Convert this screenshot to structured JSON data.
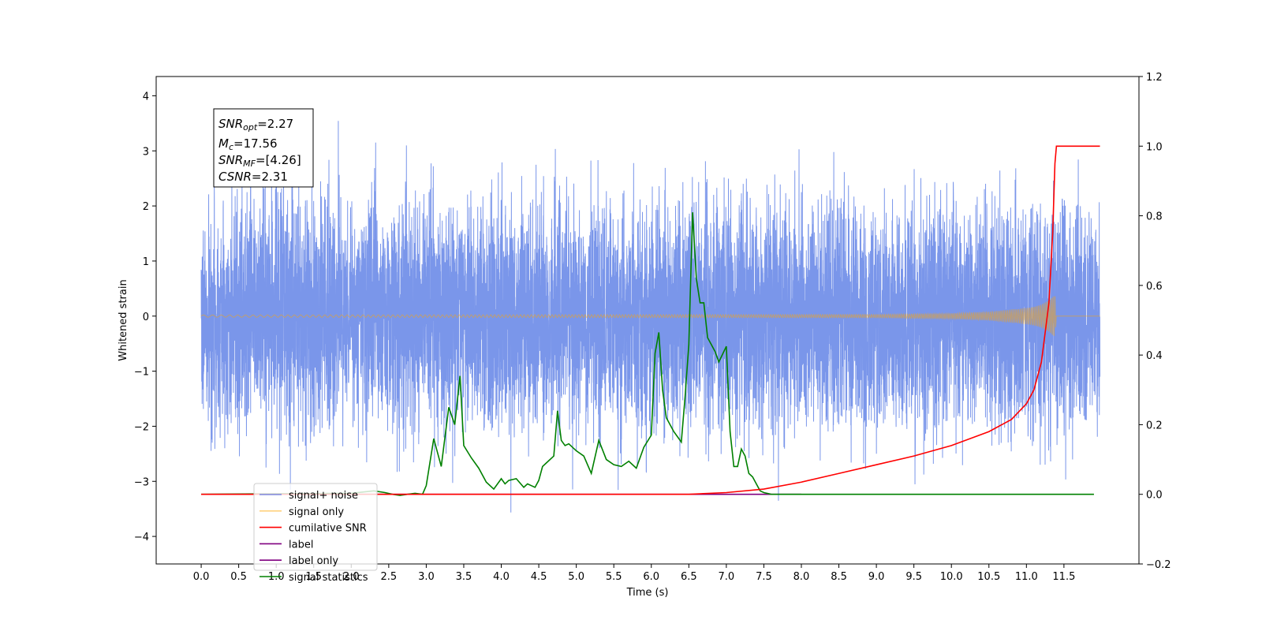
{
  "chart_data": {
    "type": "line",
    "xlabel": "Time (s)",
    "ylabel": "Whitened strain",
    "xlim": [
      -0.6,
      12.5
    ],
    "ylim": [
      -4.5,
      4.35
    ],
    "y2lim": [
      -0.2,
      1.2
    ],
    "grid": false,
    "legend_position": "lower-left",
    "x_ticks": [
      "0.0",
      "0.5",
      "1.0",
      "1.5",
      "2.0",
      "2.5",
      "3.0",
      "3.5",
      "4.0",
      "4.5",
      "5.0",
      "5.5",
      "6.0",
      "6.5",
      "7.0",
      "7.5",
      "8.0",
      "8.5",
      "9.0",
      "9.5",
      "10.0",
      "10.5",
      "11.0",
      "11.5"
    ],
    "y_ticks": [
      "4",
      "3",
      "2",
      "1",
      "0",
      "−1",
      "−2",
      "−3",
      "−4"
    ],
    "y2_ticks": [
      "1.2",
      "1.0",
      "0.8",
      "0.6",
      "0.4",
      "0.2",
      "0.0",
      "−0.2"
    ],
    "annotation": [
      {
        "var": "SNR",
        "sub": "opt",
        "value": "=2.27"
      },
      {
        "var": "M",
        "sub": "c",
        "value": "=17.56"
      },
      {
        "var": "SNR",
        "sub": "MF",
        "value": "=[4.26]"
      },
      {
        "var": "CSNR",
        "sub": "",
        "value": "=2.31"
      }
    ],
    "series": [
      {
        "name": "signal+ noise",
        "color": "#4169e1",
        "opacity": 0.7,
        "axis": "left",
        "x_range": [
          0.0,
          11.98
        ],
        "noise_std": 1.0
      },
      {
        "name": "signal only",
        "color": "#ffa500",
        "opacity": 0.5,
        "axis": "left",
        "envelope": {
          "x": [
            0.0,
            9.0,
            10.0,
            10.5,
            11.0,
            11.2,
            11.3,
            11.35,
            11.38,
            11.4,
            11.98
          ],
          "y": [
            0.02,
            0.03,
            0.05,
            0.08,
            0.15,
            0.22,
            0.3,
            0.38,
            0.42,
            0.0,
            0.0
          ]
        }
      },
      {
        "name": "cumilative SNR",
        "color": "#ff0000",
        "axis": "right",
        "x": [
          0.0,
          6.5,
          7.0,
          7.5,
          8.0,
          8.5,
          9.0,
          9.5,
          10.0,
          10.5,
          10.8,
          11.0,
          11.1,
          11.2,
          11.3,
          11.35,
          11.38,
          11.4,
          11.98
        ],
        "y": [
          0.0,
          0.0,
          0.005,
          0.015,
          0.035,
          0.06,
          0.085,
          0.11,
          0.14,
          0.18,
          0.215,
          0.26,
          0.3,
          0.38,
          0.55,
          0.75,
          0.95,
          1.0,
          1.0
        ]
      },
      {
        "name": "label",
        "color": "#800080",
        "axis": "right",
        "x": [
          2.1,
          8.0
        ],
        "y": [
          0.0,
          0.0
        ]
      },
      {
        "name": "label only",
        "color": "#800080",
        "hidden": true
      },
      {
        "name": "signal statistics",
        "color": "#008000",
        "axis": "right",
        "x": [
          0.0,
          2.0,
          2.3,
          2.45,
          2.55,
          2.65,
          2.75,
          2.85,
          2.95,
          3.0,
          3.1,
          3.2,
          3.3,
          3.38,
          3.45,
          3.5,
          3.6,
          3.7,
          3.8,
          3.9,
          4.0,
          4.05,
          4.1,
          4.2,
          4.3,
          4.35,
          4.4,
          4.45,
          4.5,
          4.55,
          4.6,
          4.7,
          4.75,
          4.8,
          4.85,
          4.9,
          5.0,
          5.1,
          5.2,
          5.3,
          5.4,
          5.5,
          5.6,
          5.7,
          5.8,
          5.9,
          6.0,
          6.05,
          6.1,
          6.15,
          6.2,
          6.3,
          6.4,
          6.45,
          6.5,
          6.55,
          6.6,
          6.65,
          6.7,
          6.75,
          6.8,
          6.85,
          6.9,
          7.0,
          7.05,
          7.1,
          7.15,
          7.2,
          7.25,
          7.3,
          7.35,
          7.4,
          7.45,
          7.5,
          7.6,
          7.7,
          7.8,
          7.9,
          8.0,
          8.1,
          11.9
        ],
        "y": [
          0.0,
          0.003,
          0.01,
          0.005,
          0.0,
          -0.003,
          0.0,
          0.003,
          0.0,
          0.025,
          0.16,
          0.08,
          0.25,
          0.2,
          0.34,
          0.14,
          0.105,
          0.075,
          0.035,
          0.015,
          0.045,
          0.03,
          0.04,
          0.045,
          0.02,
          0.03,
          0.025,
          0.02,
          0.04,
          0.08,
          0.09,
          0.11,
          0.24,
          0.155,
          0.14,
          0.145,
          0.125,
          0.11,
          0.06,
          0.155,
          0.1,
          0.085,
          0.08,
          0.095,
          0.075,
          0.135,
          0.17,
          0.405,
          0.465,
          0.3,
          0.22,
          0.18,
          0.15,
          0.28,
          0.43,
          0.81,
          0.62,
          0.55,
          0.55,
          0.45,
          0.43,
          0.41,
          0.38,
          0.425,
          0.18,
          0.08,
          0.08,
          0.13,
          0.11,
          0.06,
          0.05,
          0.03,
          0.01,
          0.005,
          0.0,
          0.0,
          0.0,
          0.0,
          0.0,
          0.0,
          0.0
        ]
      }
    ]
  }
}
